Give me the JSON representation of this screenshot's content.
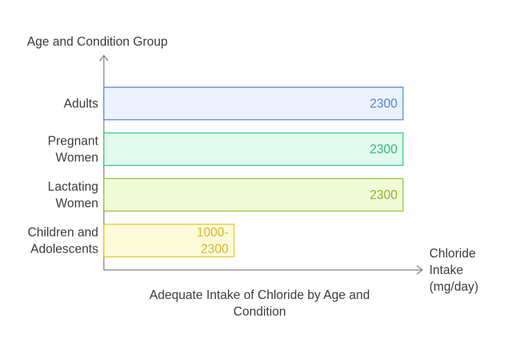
{
  "chart_data": {
    "type": "bar",
    "orientation": "horizontal",
    "title": "Adequate Intake of Chloride by Age and Condition",
    "ylabel": "Age and Condition Group",
    "xlabel": "Chloride Intake (mg/day)",
    "categories": [
      "Adults",
      "Pregnant Women",
      "Lactating Women",
      "Children and Adolescents"
    ],
    "values": [
      2300,
      2300,
      2300,
      2300
    ],
    "ranges": [
      null,
      null,
      null,
      [
        1000,
        2300
      ]
    ],
    "value_labels": [
      "2300",
      "2300",
      "2300",
      "1000-2300"
    ],
    "grid": false,
    "legend": "none",
    "colors": [
      {
        "fill": "#ecf2fd",
        "stroke": "#5b8fd6",
        "text": "#4f86d4"
      },
      {
        "fill": "#e2fbee",
        "stroke": "#44c88c",
        "text": "#33b97c"
      },
      {
        "fill": "#f2fcd9",
        "stroke": "#95c73e",
        "text": "#86b62f"
      },
      {
        "fill": "#fefbda",
        "stroke": "#e3ca35",
        "text": "#d6b92a"
      }
    ],
    "axis_color": "#8a8a8a"
  }
}
